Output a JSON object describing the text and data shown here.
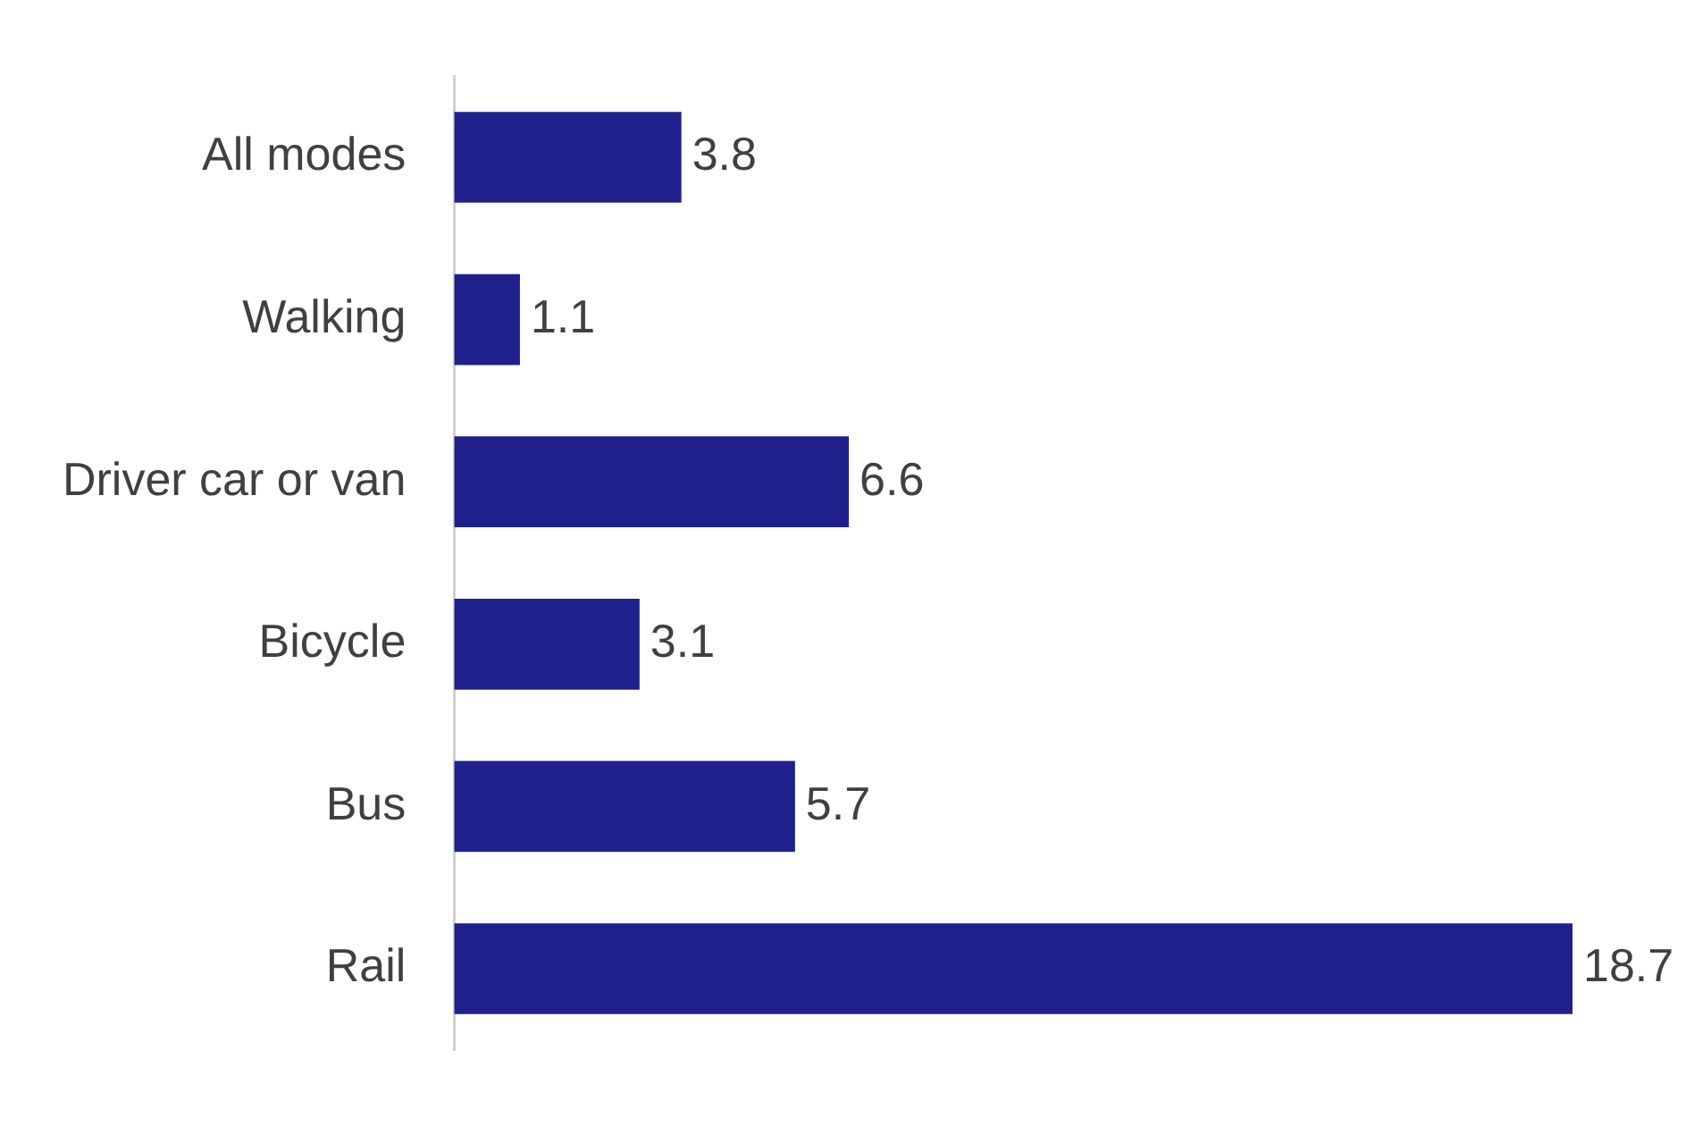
{
  "chart_data": {
    "type": "bar",
    "orientation": "horizontal",
    "categories": [
      "All modes",
      "Walking",
      "Driver car or van",
      "Bicycle",
      "Bus",
      "Rail"
    ],
    "values": [
      3.8,
      1.1,
      6.6,
      3.1,
      5.7,
      18.7
    ],
    "color": "#20208c",
    "data_labels": true
  }
}
